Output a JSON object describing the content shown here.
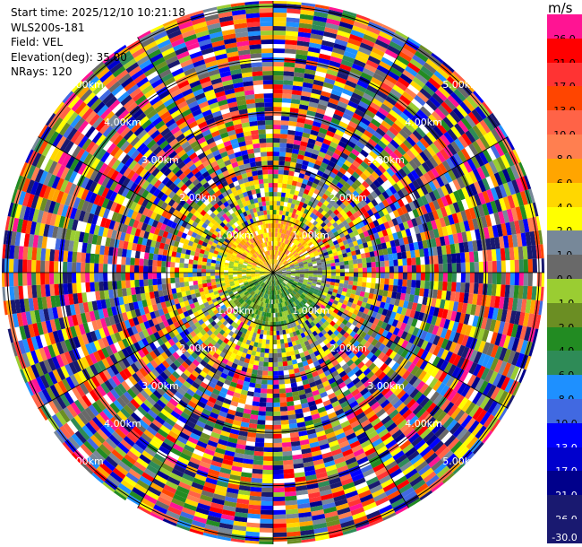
{
  "header": {
    "start_time": "Start time: 2025/12/10 10:21:18",
    "instrument": "WLS200s-181",
    "field": "Field: VEL",
    "elevation": "Elevation(deg): 35.00",
    "nrays": "NRays: 120"
  },
  "colorbar": {
    "unit": "m/s",
    "bins": [
      {
        "label": "26.0",
        "color": "#ff1493"
      },
      {
        "label": "21.0",
        "color": "#ff0000"
      },
      {
        "label": "17.0",
        "color": "#ff3333"
      },
      {
        "label": "13.0",
        "color": "#ff4500"
      },
      {
        "label": "10.0",
        "color": "#ff6347"
      },
      {
        "label": "8.0",
        "color": "#ff7f50"
      },
      {
        "label": "6.0",
        "color": "#ffa500"
      },
      {
        "label": "4.0",
        "color": "#ffd700"
      },
      {
        "label": "2.0",
        "color": "#ffff00"
      },
      {
        "label": "1.0",
        "color": "#778899"
      },
      {
        "label": "0.0",
        "color": "#696969"
      },
      {
        "label": "-1.0",
        "color": "#9acd32"
      },
      {
        "label": "-2.0",
        "color": "#6b8e23"
      },
      {
        "label": "-4.0",
        "color": "#228b22"
      },
      {
        "label": "-6.0",
        "color": "#2e8b57"
      },
      {
        "label": "-8.0",
        "color": "#1e90ff"
      },
      {
        "label": "-10.0",
        "color": "#4169e1"
      },
      {
        "label": "-13.0",
        "color": "#0000ff"
      },
      {
        "label": "-17.0",
        "color": "#0000cd"
      },
      {
        "label": "-21.0",
        "color": "#00008b"
      },
      {
        "label": "-26.0",
        "color": "#191970"
      }
    ],
    "min_label": "-30.0"
  },
  "chart_data": {
    "type": "heatmap",
    "projection": "polar PPI",
    "field": "VEL",
    "elevation_deg": 35.0,
    "n_rays": 120,
    "range_rings_km": [
      {
        "label": "1.00km",
        "range": 1
      },
      {
        "label": "2.00km",
        "range": 2
      },
      {
        "label": "3.00km",
        "range": 3
      },
      {
        "label": "4.00km",
        "range": 4
      },
      {
        "label": "5.00km",
        "range": 5
      }
    ],
    "color_scale": [
      -30,
      -26,
      -21,
      -17,
      -13,
      -10,
      -8,
      -6,
      -4,
      -2,
      -1,
      0,
      1,
      2,
      4,
      6,
      8,
      10,
      13,
      17,
      21,
      26
    ],
    "near_field": {
      "north": 4,
      "south": -6,
      "east": 1,
      "west": 2
    }
  }
}
